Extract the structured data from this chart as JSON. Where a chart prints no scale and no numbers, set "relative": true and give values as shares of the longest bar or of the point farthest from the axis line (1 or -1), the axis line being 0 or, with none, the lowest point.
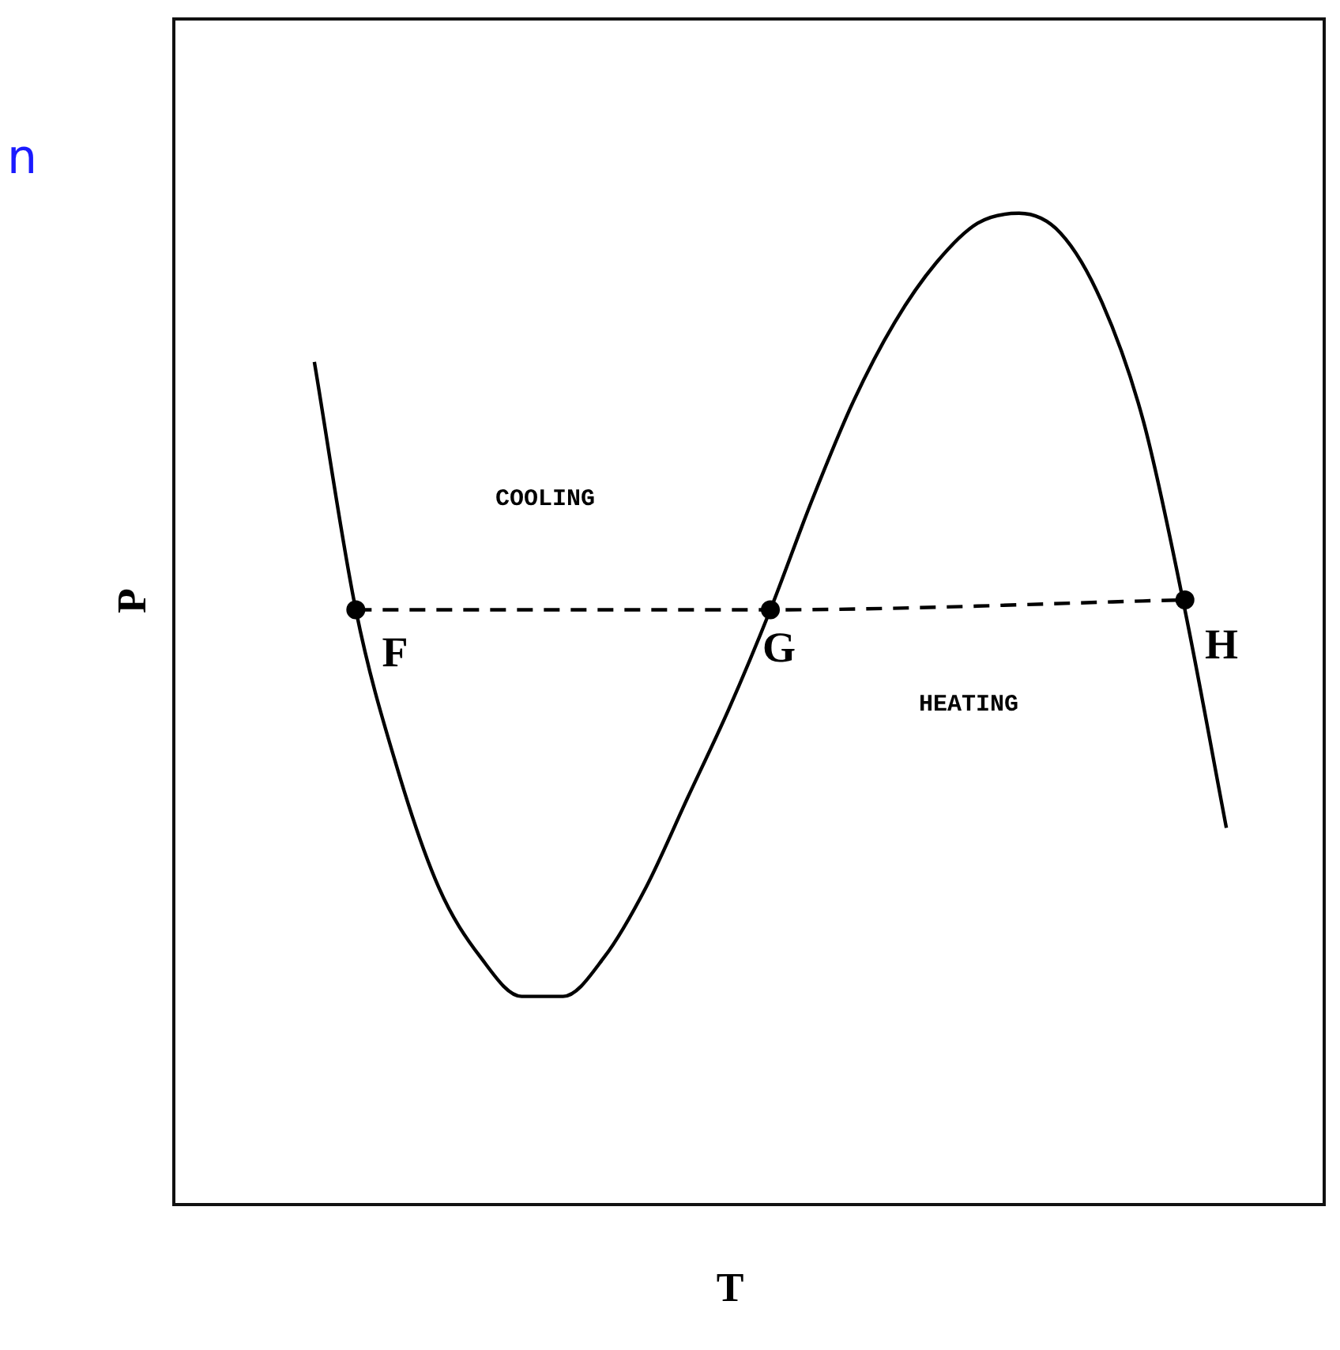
{
  "chart_data": {
    "type": "line",
    "title": "n",
    "xlabel": "T",
    "ylabel": "P",
    "relative": true,
    "categories": [
      null,
      null,
      null,
      null,
      null,
      null,
      null,
      null,
      null,
      null,
      null,
      null,
      null,
      null,
      null,
      null,
      null,
      null,
      null,
      null,
      null,
      null,
      null
    ],
    "series": [
      {
        "color": "#000000",
        "marker": "none",
        "line_style": "solid",
        "values": [
          0.85,
          0.6,
          0.44,
          0.32,
          0.25,
          0.21,
          0.21,
          0.25,
          0.32,
          0.41,
          0.5,
          0.6,
          0.71,
          0.81,
          0.89,
          0.95,
          0.99,
          1,
          0.98,
          0.91,
          0.79,
          0.6,
          0.38
        ]
      },
      {
        "color": "#000000",
        "marker": "circle",
        "line_style": "dashed",
        "values": [
          null,
          0.6,
          null,
          null,
          null,
          null,
          null,
          null,
          null,
          null,
          null,
          0.6,
          null,
          null,
          null,
          null,
          null,
          null,
          null,
          null,
          null,
          0.61,
          null
        ]
      }
    ],
    "annotations": [
      "COOLING",
      "HEATING",
      "F",
      "G",
      "H"
    ],
    "legend": false
  }
}
